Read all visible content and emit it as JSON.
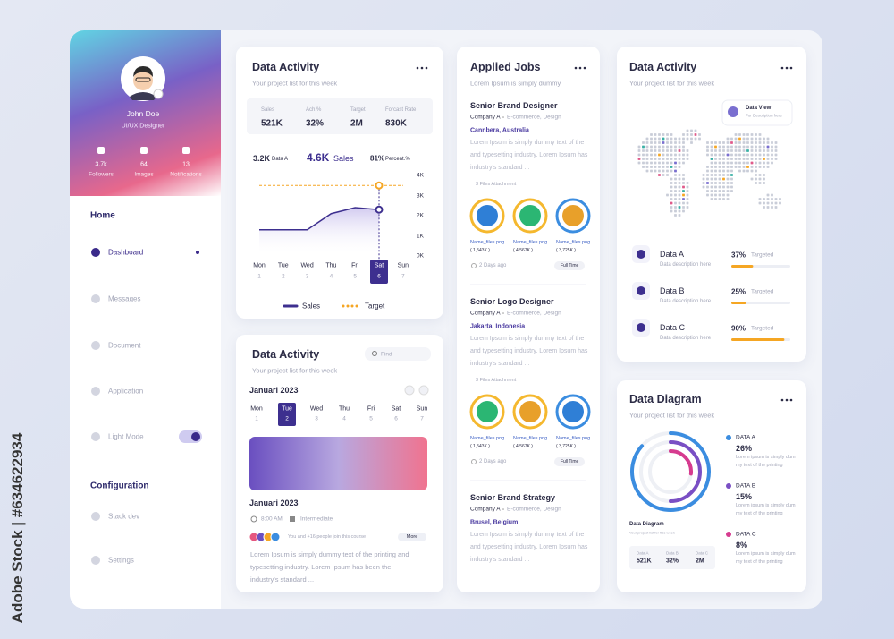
{
  "watermark": "Adobe Stock | #634622934",
  "profile": {
    "name": "John Doe",
    "role": "UI/UX Designer",
    "stats": [
      {
        "value": "3.7k",
        "label": "Followers"
      },
      {
        "value": "64",
        "label": "Images"
      },
      {
        "value": "13",
        "label": "Notifications"
      }
    ]
  },
  "nav": {
    "home_heading": "Home",
    "items": [
      "Dashboard",
      "Messages",
      "Document",
      "Application",
      "Light Mode"
    ],
    "config_heading": "Configuration",
    "config_items": [
      "Stack dev",
      "Settings"
    ]
  },
  "activity": {
    "title": "Data Activity",
    "subtitle": "Your project list for this week",
    "summary": [
      {
        "label": "Sales",
        "value": "521K"
      },
      {
        "label": "Ach.%",
        "value": "32%"
      },
      {
        "label": "Target",
        "value": "2M"
      },
      {
        "label": "Forcast Rate",
        "value": "830K"
      }
    ],
    "highlights": [
      {
        "value": "3.2K",
        "label": "Data A"
      },
      {
        "value": "4.6K",
        "label": "Sales"
      },
      {
        "value": "81%",
        "label": "Percent.%"
      }
    ]
  },
  "chart_data": {
    "type": "line",
    "categories": [
      "Mon",
      "Tue",
      "Wed",
      "Thu",
      "Fri",
      "Sat",
      "Sun"
    ],
    "category_numbers": [
      1,
      2,
      3,
      4,
      5,
      6,
      7
    ],
    "series": [
      {
        "name": "Sales",
        "color": "#3d2f8f",
        "values": [
          1.3,
          1.3,
          1.3,
          2.1,
          2.4,
          2.3,
          null
        ]
      },
      {
        "name": "Target",
        "color": "#f5a623",
        "values": [
          3.5,
          3.5,
          3.5,
          3.5,
          3.5,
          3.5,
          3.5
        ]
      }
    ],
    "ylim": [
      0,
      4
    ],
    "yticks": [
      {
        "value": 0,
        "label": "0K"
      },
      {
        "value": 1,
        "label": "1K"
      },
      {
        "value": 2,
        "label": "2K"
      },
      {
        "value": 3,
        "label": "3K"
      },
      {
        "value": 4,
        "label": "4K"
      }
    ]
  },
  "calendar": {
    "title": "Data Activity",
    "subtitle": "Your project list for this week",
    "search": "Find",
    "month": "Januari 2023",
    "days": [
      "Mon",
      "Tue",
      "Wed",
      "Thu",
      "Fri",
      "Sat",
      "Sun"
    ],
    "numbers": [
      1,
      2,
      3,
      4,
      5,
      6,
      7
    ],
    "event": {
      "title": "Januari 2023",
      "time": "8:00 AM",
      "level": "Intermediate",
      "join": "You and +16 people join this course",
      "button": "More",
      "description": "Lorem Ipsum is simply dummy text of the printing and typesetting industry. Lorem Ipsum has been the industry's standard ..."
    }
  },
  "jobs": {
    "title": "Applied Jobs",
    "subtitle": "Lorem Ipsum is simply dummy",
    "items": [
      {
        "title": "Senior Brand Designer",
        "company": "Company A",
        "type": "E-commerce, Design",
        "location": "Cannbera, Australia",
        "description": "Lorem Ipsum is simply dummy text of the and typesetting industry. Lorem Ipsum has industry's standard ...",
        "attachments": "3 Files Attachment",
        "files": [
          {
            "name": "Name_files.png",
            "size": "( 1,543K )"
          },
          {
            "name": "Name_files.png",
            "size": "( 4,567K )"
          },
          {
            "name": "Name_files.png",
            "size": "( 3,725K )"
          }
        ],
        "posted": "2 Days ago",
        "button": "Full Time"
      },
      {
        "title": "Senior Logo Designer",
        "company": "Company A",
        "type": "E-commerce, Design",
        "location": "Jakarta, Indonesia",
        "description": "Lorem Ipsum is simply dummy text of the and typesetting industry. Lorem Ipsum has industry's standard ...",
        "attachments": "3 Files Attachment",
        "files": [
          {
            "name": "Name_files.png",
            "size": "( 1,543K )"
          },
          {
            "name": "Name_files.png",
            "size": "( 4,567K )"
          },
          {
            "name": "Name_files.png",
            "size": "( 3,725K )"
          }
        ],
        "posted": "2 Days ago",
        "button": "Full Time"
      },
      {
        "title": "Senior Brand Strategy",
        "company": "Company A",
        "type": "E-commerce, Design",
        "location": "Brusel, Belgium",
        "description": "Lorem Ipsum is simply dummy text of the and typesetting industry. Lorem Ipsum has industry's standard ..."
      }
    ]
  },
  "map": {
    "title": "Data Activity",
    "subtitle": "Your project list for this week",
    "tooltip_title": "Data View",
    "tooltip_text": "For Description here"
  },
  "targets": {
    "names": [
      "Data A",
      "Data B",
      "Data C"
    ],
    "values": [
      37,
      25,
      90
    ],
    "value_labels": [
      "37%",
      "25%",
      "90%"
    ],
    "status": "Targeted",
    "description": "Data description here",
    "color": "#f5a623"
  },
  "diagram": {
    "title": "Data Diagram",
    "subtitle": "Your project list for this week",
    "names": [
      "DATA A",
      "DATA B",
      "DATA C"
    ],
    "values": [
      26,
      15,
      8
    ],
    "value_labels": [
      "26%",
      "15%",
      "8%"
    ],
    "colors": [
      "#3b8de0",
      "#7a4fc4",
      "#d63b8f"
    ],
    "description": "Lorem ipsum is simply dum my text of the printing",
    "caption": "Data Diagram",
    "summary": [
      {
        "label": "Data A",
        "value": "521K"
      },
      {
        "label": "Data B",
        "value": "32%"
      },
      {
        "label": "Data C",
        "value": "2M"
      }
    ]
  }
}
